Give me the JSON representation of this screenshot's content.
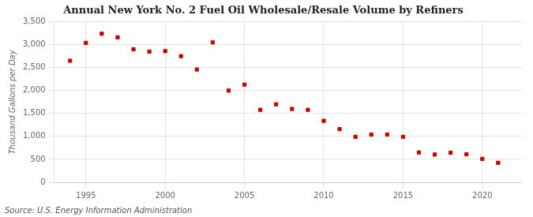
{
  "chart_data": {
    "type": "scatter",
    "title": "Annual New York No. 2 Fuel Oil Wholesale/Resale Volume by Refiners",
    "ylabel": "Thousand Gallons per Day",
    "source": "Source: U.S. Energy Information Administration",
    "color": "#cc0000",
    "marker": "square",
    "grid": true,
    "x": [
      1994,
      1995,
      1996,
      1997,
      1998,
      1999,
      2000,
      2001,
      2002,
      2003,
      2004,
      2005,
      2006,
      2007,
      2008,
      2009,
      2010,
      2011,
      2012,
      2013,
      2014,
      2015,
      2016,
      2017,
      2018,
      2019,
      2020,
      2021
    ],
    "values": [
      2650,
      3040,
      3240,
      3160,
      2900,
      2850,
      2860,
      2750,
      2460,
      3050,
      2000,
      2130,
      1580,
      1700,
      1600,
      1580,
      1340,
      1160,
      990,
      1040,
      1040,
      990,
      650,
      605,
      645,
      610,
      510,
      425
    ],
    "xlim": [
      1993,
      2022.5
    ],
    "xticks": [
      1995,
      2000,
      2005,
      2010,
      2015,
      2020
    ],
    "ylim": [
      0,
      3500
    ],
    "yticks": [
      0,
      500,
      {
        "value": 1000,
        "label": "1,000"
      },
      {
        "value": 1500,
        "label": "1,500"
      },
      {
        "value": 2000,
        "label": "2,000"
      },
      {
        "value": 2500,
        "label": "2,500"
      },
      {
        "value": 3000,
        "label": "3,000"
      },
      {
        "value": 3500,
        "label": "3,500"
      }
    ]
  }
}
